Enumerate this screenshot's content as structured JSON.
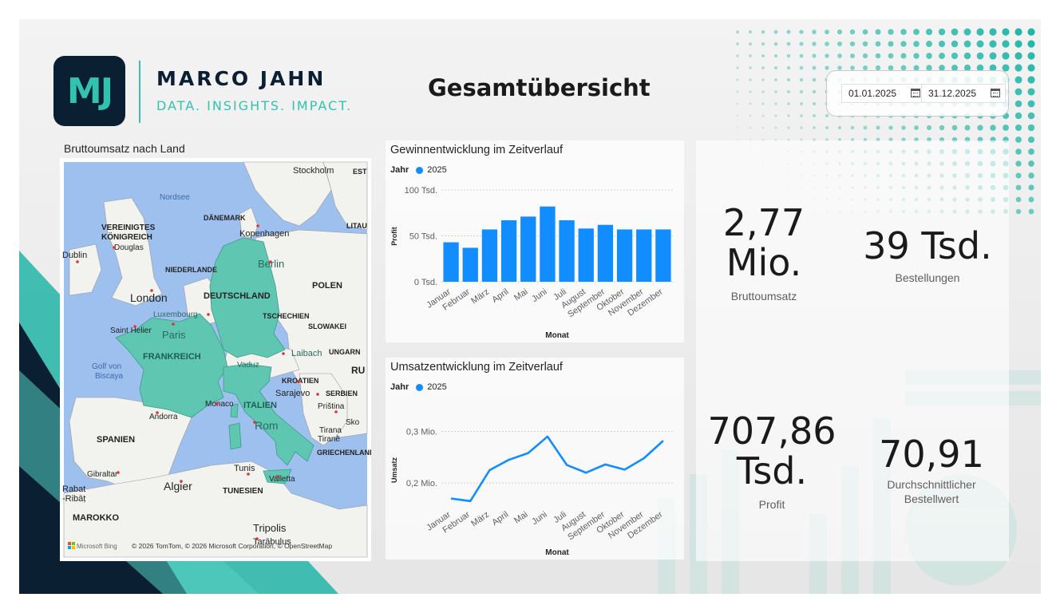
{
  "header": {
    "logo_initials": "MJ",
    "brand_name": "MARCO JAHN",
    "brand_tagline": "DATA. INSIGHTS. IMPACT.",
    "page_title": "Gesamtübersicht"
  },
  "date_filter": {
    "start": "01.01.2025",
    "end": "31.12.2025",
    "icon": "calendar-icon"
  },
  "map": {
    "title": "Bruttoumsatz nach Land",
    "highlighted_countries": [
      "DEUTSCHLAND",
      "FRANKREICH",
      "ITALIEN"
    ],
    "labels": {
      "stockholm": "Stockholm",
      "est": "EST",
      "nordsee": "Nordsee",
      "daenemark": "DÄNEMARK",
      "kopenhagen": "Kopenhagen",
      "lita": "LITAU",
      "uk1": "VEREINIGTES",
      "uk2": "KÖNIGREICH",
      "dublin": "Dublin",
      "douglas": "Douglas",
      "berlin": "Berlin",
      "niederlande": "NIEDERLANDE",
      "polen": "POLEN",
      "london": "London",
      "deutschland": "DEUTSCHLAND",
      "luxembourg": "Luxembourg",
      "tschechien": "TSCHECHIEN",
      "saint_helier": "Saint Helier",
      "paris": "Paris",
      "slowakei": "SLOWAKEI",
      "frankreich": "FRANKREICH",
      "laibach": "Laibach",
      "ungarn": "UNGARN",
      "vaduz": "Vaduz",
      "golf1": "Golf von",
      "golf2": "Biscaya",
      "ru": "RU",
      "kroatien": "KROATIEN",
      "sarajevo": "Sarajevo",
      "serbien": "SERBIEN",
      "monaco": "Monaco",
      "italien": "ITALIEN",
      "pristina": "Priština",
      "andorra": "Andorra",
      "rom": "Rom",
      "tirana": "Tirana",
      "tirane": "Tiranë",
      "spanien": "SPANIEN",
      "griechenland": "GRIECHENLAND",
      "tunis": "Tunis",
      "gibraltar": "Gibraltar",
      "valletta": "Valletta",
      "rabat1": "Rabat",
      "rabat2": "-Ribāṭ",
      "algier": "Algier",
      "tunesien": "TUNESIEN",
      "marokko": "MAROKKO",
      "tripolis": "Tripolis",
      "tarabulus": "Tarābulus",
      "sko": "Sko"
    },
    "attribution": "© 2026 TomTom, © 2026 Microsoft Corporation, © OpenStreetMap",
    "bing_label": "Microsoft Bing"
  },
  "profit_chart": {
    "title": "Gewinnentwicklung im Zeitverlauf",
    "legend_title": "Jahr",
    "legend_item": "2025",
    "ylabel": "Profit",
    "xlabel": "Monat",
    "ytick_labels": [
      "0 Tsd.",
      "50 Tsd.",
      "100 Tsd."
    ]
  },
  "revenue_chart": {
    "title": "Umsatzentwicklung im Zeitverlauf",
    "legend_title": "Jahr",
    "legend_item": "2025",
    "ylabel": "Umsatz",
    "xlabel": "Monat",
    "ytick_labels": [
      "0,2 Mio.",
      "0,3 Mio."
    ]
  },
  "kpis": {
    "revenue": {
      "value_line1": "2,77",
      "value_line2": "Mio.",
      "label": "Bruttoumsatz"
    },
    "orders": {
      "value": "39 Tsd.",
      "label": "Bestellungen"
    },
    "profit": {
      "value_line1": "707,86",
      "value_line2": "Tsd.",
      "label": "Profit"
    },
    "avg_order": {
      "value": "70,91",
      "label_line1": "Durchschnittlicher",
      "label_line2": "Bestellwert"
    }
  },
  "colors": {
    "accent": "#31c3b0",
    "navy": "#0b1f33",
    "series": "#118dff",
    "map_highlight": "#5fc7b1"
  },
  "chart_data": [
    {
      "type": "bar",
      "title": "Gewinnentwicklung im Zeitverlauf",
      "xlabel": "Monat",
      "ylabel": "Profit",
      "categories": [
        "Januar",
        "Februar",
        "März",
        "April",
        "Mai",
        "Juni",
        "Juli",
        "August",
        "September",
        "Oktober",
        "November",
        "Dezember"
      ],
      "series": [
        {
          "name": "2025",
          "values": [
            43000,
            37000,
            57000,
            67000,
            71000,
            82000,
            67000,
            58000,
            62000,
            57000,
            57000,
            57000
          ]
        }
      ],
      "ylim": [
        0,
        100000
      ],
      "yticks": [
        0,
        50000,
        100000
      ],
      "grid": true,
      "legend": "top-left"
    },
    {
      "type": "line",
      "title": "Umsatzentwicklung im Zeitverlauf",
      "xlabel": "Monat",
      "ylabel": "Umsatz",
      "categories": [
        "Januar",
        "Februar",
        "März",
        "April",
        "Mai",
        "Juni",
        "Juli",
        "August",
        "September",
        "Oktober",
        "November",
        "Dezember"
      ],
      "series": [
        {
          "name": "2025",
          "values": [
            170000,
            165000,
            225000,
            245000,
            258000,
            290000,
            235000,
            220000,
            236000,
            226000,
            248000,
            282000
          ]
        }
      ],
      "ylim": [
        140000,
        310000
      ],
      "yticks": [
        200000,
        300000
      ],
      "grid": true,
      "legend": "top-left"
    }
  ]
}
